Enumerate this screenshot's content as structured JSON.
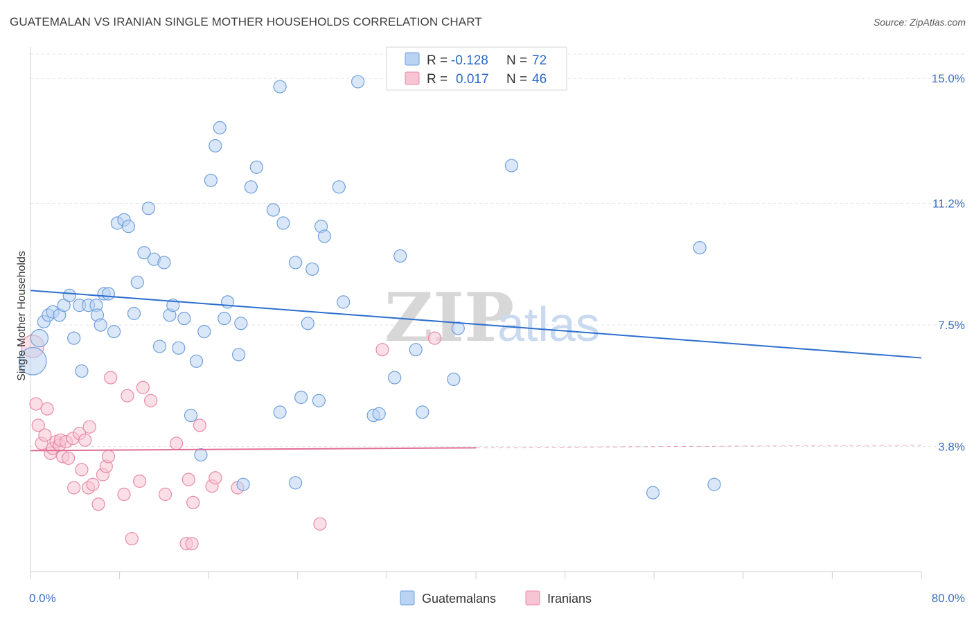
{
  "title": "GUATEMALAN VS IRANIAN SINGLE MOTHER HOUSEHOLDS CORRELATION CHART",
  "source": "Source: ZipAtlas.com",
  "watermark": {
    "part1": "ZIP",
    "part2": "atlas"
  },
  "colors": {
    "blue_fill": "#b9d3f3",
    "blue_stroke": "#6f9fdc",
    "blue_line": "#2c6fce",
    "pink_fill": "#f7c4d3",
    "pink_stroke": "#e88aa8",
    "pink_line": "#e06d93",
    "tick_text": "#3a6fc4",
    "grid": "#e3e3e3"
  },
  "legend": {
    "rows": [
      {
        "r_label": "R = ",
        "r_value": "-0.128",
        "n_label": "N = ",
        "n_value": "72"
      },
      {
        "r_label": "R = ",
        "r_value": "0.017",
        "n_label": "N = ",
        "n_value": "46"
      }
    ]
  },
  "bottom_legend": {
    "items": [
      "Guatemalans",
      "Iranians"
    ]
  },
  "chart_data": {
    "type": "scatter",
    "xlabel": "",
    "ylabel": "Single Mother Households",
    "xlim": [
      0,
      80
    ],
    "ylim": [
      0,
      15.7
    ],
    "x_tick_labels": [
      {
        "value": 0,
        "label": "0.0%"
      },
      {
        "value": 80,
        "label": "80.0%"
      }
    ],
    "y_ticks": [
      {
        "value": 3.8,
        "label": "3.8%"
      },
      {
        "value": 7.5,
        "label": "7.5%"
      },
      {
        "value": 11.2,
        "label": "11.2%"
      },
      {
        "value": 15.0,
        "label": "15.0%"
      }
    ],
    "x_minor_ticks": [
      0,
      8,
      16,
      24,
      32,
      40,
      48,
      56,
      64,
      72,
      80
    ],
    "grid": true,
    "series": [
      {
        "name": "Guatemalans",
        "trend": {
          "x": [
            0,
            80
          ],
          "y": [
            8.55,
            6.5
          ],
          "dashed_from": null
        },
        "points": [
          [
            0.2,
            6.4,
            2.2
          ],
          [
            0.8,
            7.1,
            1.4
          ],
          [
            1.2,
            7.6,
            1.0
          ],
          [
            1.6,
            7.8,
            1.0
          ],
          [
            2.0,
            7.9,
            1.0
          ],
          [
            2.6,
            7.8,
            1.0
          ],
          [
            3.0,
            8.1,
            1.0
          ],
          [
            3.5,
            8.4,
            1.0
          ],
          [
            3.9,
            7.1,
            1.0
          ],
          [
            4.6,
            6.1,
            1.0
          ],
          [
            4.4,
            8.1,
            1.0
          ],
          [
            5.2,
            8.1,
            1.0
          ],
          [
            5.9,
            8.1,
            1.0
          ],
          [
            6.0,
            7.8,
            1.0
          ],
          [
            6.3,
            7.5,
            1.0
          ],
          [
            6.6,
            8.45,
            1.0
          ],
          [
            7.0,
            8.45,
            1.0
          ],
          [
            7.5,
            7.3,
            1.0
          ],
          [
            7.8,
            10.6,
            1.0
          ],
          [
            8.4,
            10.7,
            1.0
          ],
          [
            8.8,
            10.5,
            1.0
          ],
          [
            9.3,
            7.85,
            1.0
          ],
          [
            9.6,
            8.8,
            1.0
          ],
          [
            10.2,
            9.7,
            1.0
          ],
          [
            10.6,
            11.05,
            1.0
          ],
          [
            11.1,
            9.5,
            1.0
          ],
          [
            12.0,
            9.4,
            1.0
          ],
          [
            11.6,
            6.85,
            1.0
          ],
          [
            12.5,
            7.8,
            1.0
          ],
          [
            12.8,
            8.1,
            1.0
          ],
          [
            13.3,
            6.8,
            1.0
          ],
          [
            13.8,
            7.7,
            1.0
          ],
          [
            14.4,
            4.75,
            1.0
          ],
          [
            14.9,
            6.4,
            1.0
          ],
          [
            15.3,
            3.55,
            1.0
          ],
          [
            15.6,
            7.3,
            1.0
          ],
          [
            16.2,
            11.9,
            1.0
          ],
          [
            16.6,
            12.95,
            1.0
          ],
          [
            17.0,
            13.5,
            1.0
          ],
          [
            17.4,
            7.7,
            1.0
          ],
          [
            17.7,
            8.2,
            1.0
          ],
          [
            18.7,
            6.6,
            1.0
          ],
          [
            18.9,
            7.55,
            1.0
          ],
          [
            19.1,
            2.65,
            1.0
          ],
          [
            19.8,
            11.7,
            1.0
          ],
          [
            20.3,
            12.3,
            1.0
          ],
          [
            21.8,
            11.0,
            1.0
          ],
          [
            22.4,
            4.85,
            1.0
          ],
          [
            22.4,
            14.75,
            1.0
          ],
          [
            22.7,
            10.6,
            1.0
          ],
          [
            23.8,
            9.4,
            1.0
          ],
          [
            23.8,
            2.7,
            1.0
          ],
          [
            24.3,
            5.3,
            1.0
          ],
          [
            24.9,
            7.55,
            1.0
          ],
          [
            25.3,
            9.2,
            1.0
          ],
          [
            25.9,
            5.2,
            1.0
          ],
          [
            26.1,
            10.5,
            1.0
          ],
          [
            26.4,
            10.2,
            1.0
          ],
          [
            27.7,
            11.7,
            1.0
          ],
          [
            28.1,
            8.2,
            1.0
          ],
          [
            29.4,
            14.9,
            1.0
          ],
          [
            30.8,
            4.75,
            1.0
          ],
          [
            31.3,
            4.8,
            1.0
          ],
          [
            32.7,
            5.9,
            1.0
          ],
          [
            33.2,
            9.6,
            1.0
          ],
          [
            34.6,
            6.75,
            1.0
          ],
          [
            35.2,
            4.85,
            1.0
          ],
          [
            38.0,
            5.85,
            1.0
          ],
          [
            38.4,
            7.4,
            1.0
          ],
          [
            43.2,
            12.35,
            1.0
          ],
          [
            55.9,
            2.4,
            1.0
          ],
          [
            60.1,
            9.85,
            1.0
          ],
          [
            61.4,
            2.65,
            1.0
          ]
        ]
      },
      {
        "name": "Iranians",
        "trend": {
          "x": [
            0,
            80
          ],
          "y": [
            3.68,
            3.85
          ],
          "dashed_from": 40
        },
        "points": [
          [
            0.2,
            6.85,
            1.8
          ],
          [
            0.5,
            5.1,
            1.0
          ],
          [
            0.7,
            4.45,
            1.0
          ],
          [
            1.0,
            3.9,
            1.0
          ],
          [
            1.3,
            4.15,
            1.0
          ],
          [
            1.5,
            4.95,
            1.0
          ],
          [
            1.8,
            3.6,
            1.0
          ],
          [
            2.0,
            3.75,
            1.0
          ],
          [
            2.3,
            3.95,
            1.0
          ],
          [
            2.6,
            3.85,
            1.0
          ],
          [
            2.7,
            4.0,
            1.0
          ],
          [
            2.9,
            3.5,
            1.0
          ],
          [
            3.2,
            3.95,
            1.0
          ],
          [
            3.4,
            3.45,
            1.0
          ],
          [
            3.8,
            4.05,
            1.0
          ],
          [
            3.9,
            2.55,
            1.0
          ],
          [
            4.4,
            4.2,
            1.0
          ],
          [
            4.6,
            3.1,
            1.0
          ],
          [
            4.9,
            4.0,
            1.0
          ],
          [
            5.2,
            2.55,
            1.0
          ],
          [
            5.3,
            4.4,
            1.0
          ],
          [
            5.6,
            2.65,
            1.0
          ],
          [
            6.1,
            2.05,
            1.0
          ],
          [
            6.5,
            2.95,
            1.0
          ],
          [
            6.8,
            3.2,
            1.0
          ],
          [
            7.0,
            3.5,
            1.0
          ],
          [
            7.2,
            5.9,
            1.0
          ],
          [
            8.4,
            2.35,
            1.0
          ],
          [
            8.7,
            5.35,
            1.0
          ],
          [
            9.1,
            1.0,
            1.0
          ],
          [
            9.8,
            2.75,
            1.0
          ],
          [
            10.1,
            5.6,
            1.0
          ],
          [
            10.8,
            5.2,
            1.0
          ],
          [
            12.1,
            2.35,
            1.0
          ],
          [
            13.1,
            3.9,
            1.0
          ],
          [
            14.0,
            0.85,
            1.0
          ],
          [
            14.2,
            2.8,
            1.0
          ],
          [
            14.6,
            2.1,
            1.0
          ],
          [
            14.5,
            0.85,
            1.0
          ],
          [
            15.2,
            4.45,
            1.0
          ],
          [
            16.3,
            2.6,
            1.0
          ],
          [
            16.6,
            2.85,
            1.0
          ],
          [
            18.6,
            2.55,
            1.0
          ],
          [
            26.0,
            1.45,
            1.0
          ],
          [
            31.6,
            6.75,
            1.0
          ],
          [
            36.3,
            7.1,
            1.0
          ]
        ]
      }
    ]
  }
}
